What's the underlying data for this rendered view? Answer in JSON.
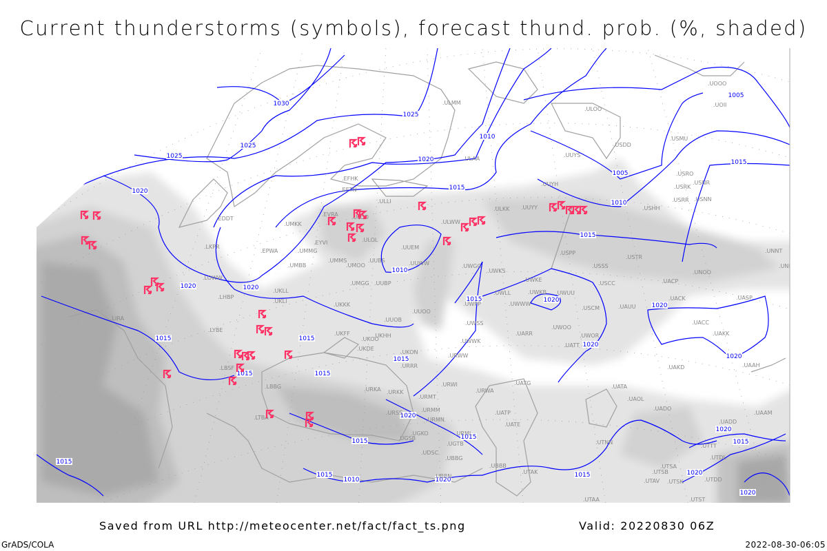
{
  "title": "Current thunderstorms (symbols), forecast thund. prob. (%, shaded)",
  "footer": {
    "saved_from": "Saved from URL http://meteocenter.net/fact/fact_ts.png",
    "valid": "Valid: 20220830 06Z",
    "software": "GrADS/COLA",
    "generated": "2022-08-30-06:05"
  },
  "colors": {
    "isobar": "#0000ff",
    "coastline": "#a0a0a0",
    "thunderstorm_symbol": "#ff3366",
    "probability_shading": [
      "#e6e6e6",
      "#d2d2d2",
      "#bebebe",
      "#aaaaaa"
    ]
  },
  "symbol": "thunderstorm-icon",
  "isobar_labels": [
    "1030",
    "1025",
    "1025",
    "1025",
    "1020",
    "1020",
    "1015",
    "1010",
    "1005",
    "1005",
    "1010",
    "1015",
    "1015",
    "1010",
    "1020",
    "1020",
    "1015",
    "1015",
    "1020",
    "1020",
    "1020",
    "1020",
    "1015",
    "1015",
    "1015",
    "1015",
    "1020",
    "1015",
    "1015",
    "1015",
    "1010",
    "1020",
    "1015",
    "1015",
    "1020",
    "1020",
    "1020",
    "1015"
  ],
  "stations": [
    ".EDDT",
    ".LKPR",
    ".EPWA",
    ".LOWW",
    ".LHBP",
    ".LIRA",
    ".LYBE",
    ".LBSF",
    ".LBBG",
    ".LTBA",
    ".EFHK",
    ".EETN",
    ".ULLI",
    ".ULMM",
    ".ULAA",
    ".EVRA",
    ".UMKK",
    ".EYVI",
    ".UMMG",
    ".UMMS",
    ".UMOO",
    ".UUBS",
    ".UMGG",
    ".UUBP",
    ".UMBB",
    ".UKLL",
    ".UKLI",
    ".UKKK",
    ".ULOL",
    ".ULOD",
    ".UUEM",
    ".UUWW",
    ".ULWW",
    ".UWGG",
    ".ULOO",
    ".USDD",
    ".UUYS",
    ".USMU",
    ".UUYH",
    ".ULKK",
    ".UUYY",
    ".USRO",
    ".USRK",
    ".USNR",
    ".USRR",
    ".USNN",
    ".USHH",
    ".USPP",
    ".USTR",
    ".USSS",
    ".UNOO",
    ".UNNT",
    ".UNBB",
    ".UOOO",
    ".UOII",
    ".UWKS",
    ".UWKE",
    ".USCC",
    ".UACP",
    ".UWLL",
    ".UWKB",
    ".UWUU",
    ".UWWW",
    ".USCM",
    ".UAUU",
    ".UACK",
    ".UASP",
    ".UACC",
    ".UAKK",
    ".UWOO",
    ".UARR",
    ".UWOR",
    ".UATT",
    ".UAKD",
    ".UAAH",
    ".UATG",
    ".UATA",
    ".UAOL",
    ".UADO",
    ".UAAM",
    ".UADD",
    ".UATP",
    ".UATE",
    ".UTNN",
    ".UBBB",
    ".UTAK",
    ".UTSA",
    ".UTSB",
    ".UTAV",
    ".UTSK",
    ".UTDD",
    ".UTAA",
    ".UTST",
    ".UTDL",
    ".UTTT",
    ".UUOO",
    ".UUOB",
    ".UKHH",
    ".UKOO",
    ".UKFF",
    ".UKDE",
    ".UKON",
    ".URRR",
    ".URKA",
    ".URKK",
    ".URMT",
    ".URMM",
    ".URMN",
    ".URSS",
    ".UGKO",
    ".UGSB",
    ".URML",
    ".UGTB",
    ".UDSC",
    ".UBBG",
    ".UBBN",
    ".UWPP",
    ".UWSS",
    ".UWWK",
    ".URWW",
    ".URWI",
    ".URWA"
  ]
}
